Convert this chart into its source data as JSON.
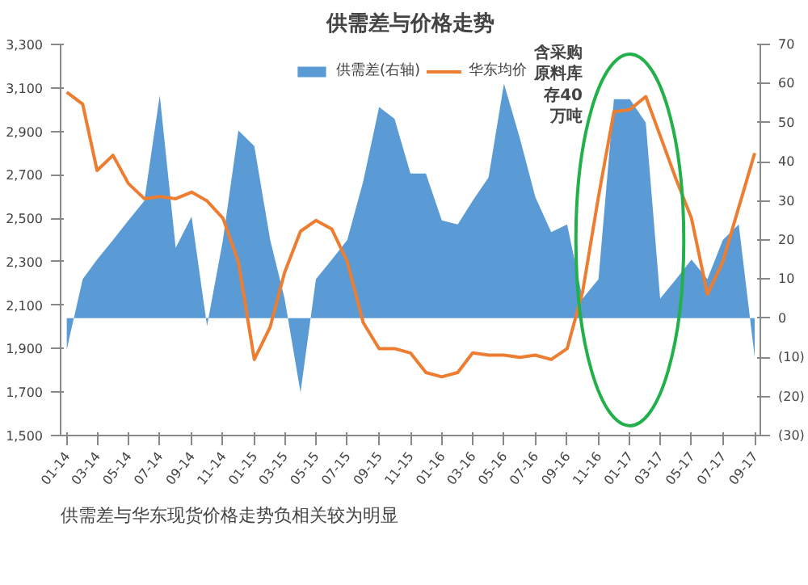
{
  "chart_data": {
    "type": "line",
    "title": "供需差与价格走势",
    "x": [
      "2014-01",
      "2014-02",
      "2014-03",
      "2014-04",
      "2014-05",
      "2014-06",
      "2014-07",
      "2014-08",
      "2014-09",
      "2014-10",
      "2014-11",
      "2014-12",
      "2015-01",
      "2015-02",
      "2015-03",
      "2015-04",
      "2015-05",
      "2015-06",
      "2015-07",
      "2015-08",
      "2015-09",
      "2015-10",
      "2015-11",
      "2015-12",
      "2016-01",
      "2016-02",
      "2016-03",
      "2016-04",
      "2016-05",
      "2016-06",
      "2016-07",
      "2016-08",
      "2016-09",
      "2016-10",
      "2016-11",
      "2016-12",
      "2017-01",
      "2017-02",
      "2017-03",
      "2017-04",
      "2017-05",
      "2017-06",
      "2017-07",
      "2017-08",
      "2017-09"
    ],
    "series": [
      {
        "name": "供需差(右轴)",
        "type": "area",
        "axis": "y2",
        "color": "#5b9bd5",
        "values": [
          -8,
          10,
          15,
          20,
          25,
          30,
          57,
          18,
          26,
          -2,
          20,
          48,
          44,
          20,
          5,
          -19,
          10,
          15,
          20,
          35,
          54,
          51,
          37,
          37,
          25,
          24,
          30,
          36,
          60,
          46,
          31,
          22,
          24,
          5,
          10,
          56,
          56,
          50,
          5,
          10,
          15,
          10,
          20,
          24,
          -10
        ]
      },
      {
        "name": "华东均价",
        "color": "#ed7d31",
        "values": [
          3080,
          3025,
          2720,
          2790,
          2660,
          2590,
          2600,
          2590,
          2620,
          2580,
          2500,
          2300,
          1850,
          2000,
          2250,
          2440,
          2490,
          2450,
          2300,
          2020,
          1900,
          1900,
          1880,
          1790,
          1770,
          1790,
          1880,
          1870,
          1870,
          1860,
          1870,
          1850,
          1900,
          2160,
          2600,
          2990,
          3000,
          3060,
          2880,
          2680,
          2500,
          2150,
          2300,
          2550,
          2800
        ]
      }
    ],
    "xlim": [
      "2013-12-20",
      "2017-09-12"
    ],
    "xticks": [
      {
        "value": "2014-01",
        "label": "01-14"
      },
      {
        "value": "2014-03",
        "label": "03-14"
      },
      {
        "value": "2014-05",
        "label": "05-14"
      },
      {
        "value": "2014-07",
        "label": "07-14"
      },
      {
        "value": "2014-09",
        "label": "09-14"
      },
      {
        "value": "2014-11",
        "label": "11-14"
      },
      {
        "value": "2015-01",
        "label": "01-15"
      },
      {
        "value": "2015-03",
        "label": "03-15"
      },
      {
        "value": "2015-05",
        "label": "05-15"
      },
      {
        "value": "2015-07",
        "label": "07-15"
      },
      {
        "value": "2015-09",
        "label": "09-15"
      },
      {
        "value": "2015-11",
        "label": "11-15"
      },
      {
        "value": "2016-01",
        "label": "01-16"
      },
      {
        "value": "2016-03",
        "label": "03-16"
      },
      {
        "value": "2016-05",
        "label": "05-16"
      },
      {
        "value": "2016-07",
        "label": "07-16"
      },
      {
        "value": "2016-09",
        "label": "09-16"
      },
      {
        "value": "2016-11",
        "label": "11-16"
      },
      {
        "value": "2017-01",
        "label": "01-17"
      },
      {
        "value": "2017-03",
        "label": "03-17"
      },
      {
        "value": "2017-05",
        "label": "05-17"
      },
      {
        "value": "2017-07",
        "label": "07-17"
      },
      {
        "value": "2017-09",
        "label": "09-17"
      }
    ],
    "ylim": [
      1500,
      3300
    ],
    "yticks": [
      {
        "value": 1500,
        "label": "1,500"
      },
      {
        "value": 1700,
        "label": "1,700"
      },
      {
        "value": 1900,
        "label": "1,900"
      },
      {
        "value": 2100,
        "label": "2,100"
      },
      {
        "value": 2300,
        "label": "2,300"
      },
      {
        "value": 2500,
        "label": "2,500"
      },
      {
        "value": 2700,
        "label": "2,700"
      },
      {
        "value": 2900,
        "label": "2,900"
      },
      {
        "value": 3100,
        "label": "3,100"
      },
      {
        "value": 3300,
        "label": "3,300"
      }
    ],
    "y2lim": [
      -30,
      70
    ],
    "y2ticks": [
      {
        "value": -30,
        "label": "(30)"
      },
      {
        "value": -20,
        "label": "(20)"
      },
      {
        "value": -10,
        "label": "(10)"
      },
      0,
      10,
      20,
      30,
      40,
      50,
      60,
      70
    ],
    "annotations": [
      "含采购原料库存40万吨",
      "供需差与华东现货价格走势负相关较为明显"
    ],
    "legend": "top",
    "grid": false
  }
}
